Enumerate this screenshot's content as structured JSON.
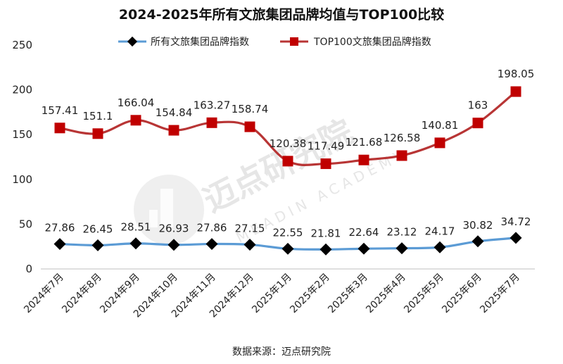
{
  "chart_data": {
    "type": "line",
    "title": "2024-2025年所有文旅集团品牌均值与TOP100比较",
    "categories": [
      "2024年7月",
      "2024年8月",
      "2024年9月",
      "2024年10月",
      "2024年11月",
      "2024年12月",
      "2025年1月",
      "2025年2月",
      "2025年3月",
      "2025年4月",
      "2025年5月",
      "2025年6月",
      "2025年7月"
    ],
    "series": [
      {
        "name": "所有文旅集团品牌指数",
        "color": "#5b9bd5",
        "marker": "diamond",
        "marker_color": "#000000",
        "values": [
          27.86,
          26.45,
          28.51,
          26.93,
          27.86,
          27.15,
          22.55,
          21.81,
          22.64,
          23.12,
          24.17,
          30.82,
          34.72
        ],
        "labels": [
          "27.86",
          "26.45",
          "28.51",
          "26.93",
          "27.86",
          "27.15",
          "22.55",
          "21.81",
          "22.64",
          "23.12",
          "24.17",
          "30.82",
          "34.72"
        ]
      },
      {
        "name": "TOP100文旅集团品牌指数",
        "color": "#b83535",
        "marker": "square",
        "marker_color": "#c00000",
        "values": [
          157.41,
          151.1,
          166.04,
          154.84,
          163.27,
          158.74,
          120.38,
          117.49,
          121.68,
          126.58,
          140.81,
          163,
          198.05
        ],
        "labels": [
          "157.41",
          "151.1",
          "166.04",
          "154.84",
          "163.27",
          "158.74",
          "120.38",
          "117.49",
          "121.68",
          "126.58",
          "140.81",
          "163",
          "198.05"
        ]
      }
    ],
    "ylim": [
      0,
      250
    ],
    "yticks": [
      0,
      50,
      100,
      150,
      200,
      250
    ],
    "ytick_labels": [
      "0",
      "50",
      "100",
      "150",
      "200",
      "250"
    ],
    "grid": false,
    "legend": "top-center",
    "source": "数据来源：迈点研究院"
  },
  "watermark": {
    "text": "迈点研究院",
    "subtext": "MEADIN ACADEMY"
  }
}
